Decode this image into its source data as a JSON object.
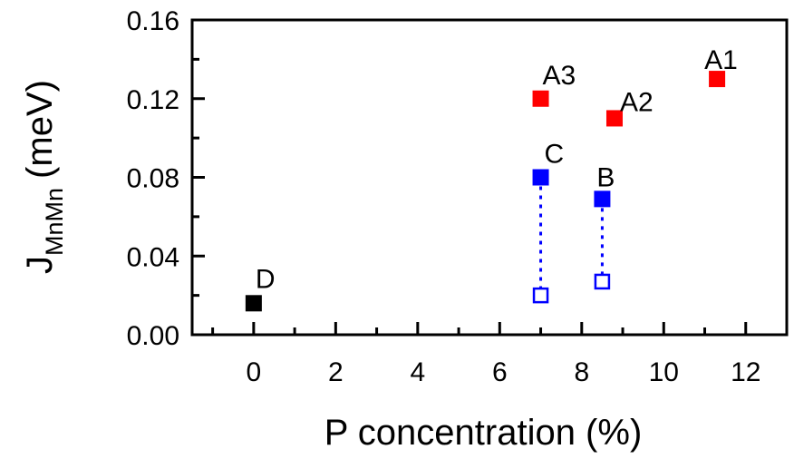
{
  "chart_data": {
    "type": "scatter",
    "xlabel": "P concentration (%)",
    "ylabel": {
      "main": "J",
      "subscript": "MnMn",
      "unit": "(meV)"
    },
    "xlim": [
      -1.5,
      13
    ],
    "ylim": [
      0,
      0.16
    ],
    "xticks": [
      0,
      2,
      4,
      6,
      8,
      10,
      12
    ],
    "xtick_labels": [
      "0",
      "2",
      "4",
      "6",
      "8",
      "10",
      "12"
    ],
    "yticks": [
      0,
      0.04,
      0.08,
      0.12,
      0.16
    ],
    "ytick_labels": [
      "0.00",
      "0.04",
      "0.08",
      "0.12",
      "0.16"
    ],
    "grid": false,
    "points": [
      {
        "label": "A1",
        "x": 11.3,
        "y": 0.13,
        "color": "#ff0000",
        "filled": true
      },
      {
        "label": "A2",
        "x": 8.8,
        "y": 0.11,
        "color": "#ff0000",
        "filled": true
      },
      {
        "label": "A3",
        "x": 7.0,
        "y": 0.12,
        "color": "#ff0000",
        "filled": true
      },
      {
        "label": "B",
        "x": 8.5,
        "y": 0.069,
        "color": "#0000ff",
        "filled": true
      },
      {
        "label": "C",
        "x": 7.0,
        "y": 0.08,
        "color": "#0000ff",
        "filled": true
      },
      {
        "label": "D",
        "x": 0.0,
        "y": 0.016,
        "color": "#000000",
        "filled": true
      },
      {
        "x": 8.5,
        "y": 0.027,
        "color": "#0000ff",
        "filled": false
      },
      {
        "x": 7.0,
        "y": 0.02,
        "color": "#0000ff",
        "filled": false
      }
    ],
    "connectors": [
      {
        "x": 7.0,
        "y_from": 0.08,
        "y_to": 0.02,
        "color": "#0000ff",
        "style": "dotted"
      },
      {
        "x": 8.5,
        "y_from": 0.069,
        "y_to": 0.027,
        "color": "#0000ff",
        "style": "dotted"
      }
    ]
  }
}
